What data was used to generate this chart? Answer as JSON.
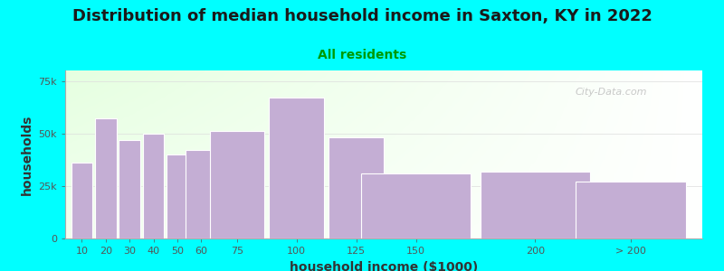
{
  "title": "Distribution of median household income in Saxton, KY in 2022",
  "subtitle": "All residents",
  "xlabel": "household income ($1000)",
  "ylabel": "households",
  "background_color": "#00FFFF",
  "bar_color": "#C4AED4",
  "bar_edge_color": "#ffffff",
  "categories": [
    "10",
    "20",
    "30",
    "40",
    "50",
    "60",
    "75",
    "100",
    "125",
    "150",
    "200",
    "> 200"
  ],
  "values": [
    36000,
    57000,
    47000,
    50000,
    40000,
    42000,
    51000,
    67000,
    48000,
    31000,
    32000,
    27000
  ],
  "x_positions": [
    10,
    20,
    30,
    40,
    50,
    60,
    75,
    100,
    125,
    150,
    200,
    240
  ],
  "bar_widths": [
    9,
    9,
    9,
    9,
    9,
    13,
    23,
    23,
    23,
    46,
    46,
    46
  ],
  "ylim": [
    0,
    80000
  ],
  "xlim": [
    3,
    270
  ],
  "yticks": [
    0,
    25000,
    50000,
    75000
  ],
  "ytick_labels": [
    "0",
    "25k",
    "50k",
    "75k"
  ],
  "title_fontsize": 13,
  "subtitle_fontsize": 10,
  "subtitle_color": "#009900",
  "title_color": "#1a1a1a",
  "axis_label_fontsize": 10,
  "tick_fontsize": 8,
  "watermark_text": "City-Data.com"
}
